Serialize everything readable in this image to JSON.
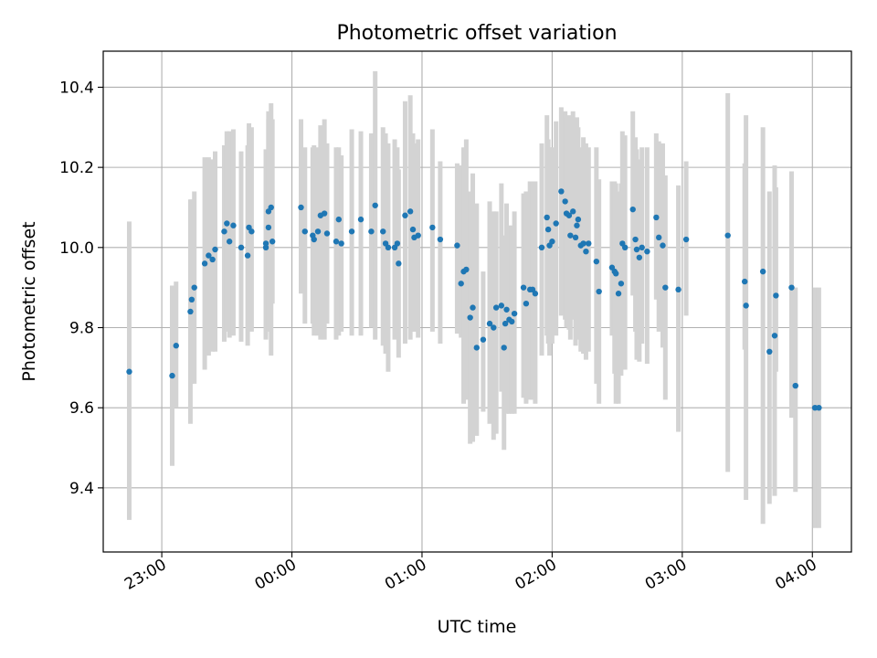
{
  "chart_data": {
    "type": "scatter",
    "title": "Photometric offset variation",
    "xlabel": "UTC time",
    "ylabel": "Photometric offset",
    "x_unit": "UTC time (hours after 22:00; ticks show HH:MM)",
    "xlim": [
      0.55,
      6.3
    ],
    "ylim": [
      9.24,
      10.49
    ],
    "x_ticks": [
      1.0,
      2.0,
      3.0,
      4.0,
      5.0,
      6.0
    ],
    "x_tick_labels": [
      "23:00",
      "00:00",
      "01:00",
      "02:00",
      "03:00",
      "04:00"
    ],
    "y_ticks": [
      9.4,
      9.6,
      9.8,
      10.0,
      10.2,
      10.4
    ],
    "y_tick_labels": [
      "9.4",
      "9.6",
      "9.8",
      "10.0",
      "10.2",
      "10.4"
    ],
    "grid": true,
    "legend": "none",
    "colors": {
      "points": "#1f77b4",
      "errorbars": "#d3d3d3",
      "grid": "#b0b0b0"
    },
    "series": [
      {
        "x": [
          0.75,
          1.08,
          1.11,
          1.22,
          1.23,
          1.25,
          1.33,
          1.36,
          1.39,
          1.41,
          1.48,
          1.5,
          1.52,
          1.55,
          1.61,
          1.66,
          1.67,
          1.69,
          1.8,
          1.8,
          1.82,
          1.82,
          1.84,
          1.85,
          2.07,
          2.1,
          2.16,
          2.17,
          2.2,
          2.22,
          2.25,
          2.27,
          2.34,
          2.36,
          2.38,
          2.46,
          2.53,
          2.61,
          2.64,
          2.7,
          2.72,
          2.74,
          2.79,
          2.81,
          2.82,
          2.87,
          2.91,
          2.93,
          2.94,
          2.97,
          3.08,
          3.14,
          3.27,
          3.3,
          3.32,
          3.34,
          3.37,
          3.39,
          3.42,
          3.47,
          3.52,
          3.55,
          3.57,
          3.61,
          3.63,
          3.64,
          3.65,
          3.67,
          3.69,
          3.71,
          3.78,
          3.8,
          3.83,
          3.85,
          3.87,
          3.92,
          3.96,
          3.97,
          3.98,
          4.0,
          4.03,
          4.07,
          4.1,
          4.11,
          4.13,
          4.14,
          4.16,
          4.18,
          4.19,
          4.2,
          4.22,
          4.24,
          4.26,
          4.28,
          4.34,
          4.36,
          4.46,
          4.48,
          4.49,
          4.51,
          4.53,
          4.54,
          4.56,
          4.62,
          4.64,
          4.65,
          4.67,
          4.69,
          4.73,
          4.8,
          4.82,
          4.85,
          4.87,
          4.97,
          5.03,
          5.35,
          5.48,
          5.49,
          5.62,
          5.67,
          5.71,
          5.72,
          5.84,
          5.87,
          6.02,
          6.05
        ],
        "y": [
          9.69,
          9.68,
          9.755,
          9.84,
          9.87,
          9.9,
          9.96,
          9.98,
          9.97,
          9.995,
          10.04,
          10.06,
          10.015,
          10.055,
          10.0,
          9.98,
          10.05,
          10.04,
          10.0,
          10.01,
          10.05,
          10.09,
          10.1,
          10.015,
          10.1,
          10.04,
          10.03,
          10.02,
          10.04,
          10.08,
          10.085,
          10.035,
          10.015,
          10.07,
          10.01,
          10.04,
          10.07,
          10.04,
          10.105,
          10.04,
          10.01,
          10.0,
          10.0,
          10.01,
          9.96,
          10.08,
          10.09,
          10.045,
          10.025,
          10.03,
          10.05,
          10.02,
          10.005,
          9.91,
          9.94,
          9.945,
          9.825,
          9.85,
          9.75,
          9.77,
          9.81,
          9.8,
          9.85,
          9.855,
          9.75,
          9.81,
          9.845,
          9.82,
          9.815,
          9.835,
          9.9,
          9.86,
          9.895,
          9.895,
          9.885,
          10.0,
          10.075,
          10.045,
          10.005,
          10.015,
          10.06,
          10.14,
          10.115,
          10.085,
          10.08,
          10.03,
          10.09,
          10.025,
          10.055,
          10.07,
          10.005,
          10.01,
          9.99,
          10.01,
          9.965,
          9.89,
          9.95,
          9.94,
          9.935,
          9.885,
          9.91,
          10.01,
          10.0,
          10.095,
          10.02,
          9.995,
          9.975,
          10.0,
          9.99,
          10.075,
          10.025,
          10.005,
          9.9,
          9.895,
          10.02,
          10.03,
          9.915,
          9.855,
          9.94,
          9.74,
          9.78,
          9.88,
          9.9,
          9.655,
          9.6,
          9.6
        ],
        "yerr_low": [
          9.32,
          9.455,
          9.6,
          9.56,
          9.66,
          9.66,
          9.695,
          9.73,
          9.74,
          9.74,
          9.765,
          9.79,
          9.775,
          9.78,
          9.765,
          9.755,
          9.8,
          9.79,
          9.77,
          9.78,
          9.79,
          9.84,
          9.73,
          9.86,
          9.885,
          9.81,
          9.81,
          9.78,
          9.78,
          9.77,
          9.77,
          9.81,
          9.77,
          9.78,
          9.79,
          9.78,
          9.78,
          9.8,
          9.77,
          9.755,
          9.735,
          9.69,
          9.77,
          9.79,
          9.725,
          9.76,
          9.77,
          9.79,
          9.79,
          9.775,
          9.79,
          9.76,
          9.785,
          9.775,
          9.61,
          9.62,
          9.51,
          9.515,
          9.53,
          9.59,
          9.56,
          9.52,
          9.535,
          9.64,
          9.495,
          9.6,
          9.585,
          9.585,
          9.585,
          9.585,
          9.625,
          9.61,
          9.62,
          9.62,
          9.61,
          9.73,
          9.78,
          9.76,
          9.73,
          9.76,
          9.78,
          9.83,
          9.82,
          9.8,
          9.795,
          9.77,
          9.82,
          9.755,
          9.77,
          9.775,
          9.74,
          9.735,
          9.72,
          9.74,
          9.66,
          9.61,
          9.78,
          9.685,
          9.61,
          9.61,
          9.68,
          9.79,
          9.695,
          9.88,
          9.79,
          9.72,
          9.715,
          9.76,
          9.71,
          9.87,
          9.79,
          9.75,
          9.62,
          9.54,
          9.83,
          9.44,
          9.745,
          9.37,
          9.31,
          9.36,
          9.38,
          9.69,
          9.575,
          9.39,
          9.3,
          9.3
        ],
        "yerr_high": [
          10.065,
          9.905,
          9.915,
          10.12,
          10.12,
          10.14,
          10.225,
          10.225,
          10.22,
          10.24,
          10.255,
          10.29,
          10.29,
          10.295,
          10.24,
          10.255,
          10.31,
          10.3,
          10.24,
          10.245,
          10.32,
          10.34,
          10.36,
          10.32,
          10.32,
          10.25,
          10.25,
          10.255,
          10.25,
          10.305,
          10.32,
          10.26,
          10.25,
          10.25,
          10.23,
          10.295,
          10.29,
          10.285,
          10.44,
          10.3,
          10.285,
          10.26,
          10.27,
          10.25,
          10.195,
          10.365,
          10.38,
          10.285,
          10.26,
          10.27,
          10.295,
          10.215,
          10.21,
          10.205,
          10.25,
          10.27,
          10.14,
          10.185,
          10.11,
          9.94,
          10.115,
          10.09,
          10.09,
          10.16,
          9.99,
          10.03,
          10.11,
          10.055,
          10.055,
          10.09,
          10.135,
          10.14,
          10.165,
          10.165,
          10.165,
          10.26,
          10.33,
          10.27,
          10.25,
          10.25,
          10.315,
          10.35,
          10.34,
          10.325,
          10.33,
          10.275,
          10.34,
          10.27,
          10.325,
          10.3,
          10.25,
          10.275,
          10.26,
          10.25,
          10.25,
          10.17,
          10.165,
          10.165,
          10.16,
          10.14,
          10.16,
          10.29,
          10.28,
          10.34,
          10.275,
          10.245,
          10.22,
          10.25,
          10.25,
          10.285,
          10.265,
          10.26,
          10.18,
          10.155,
          10.215,
          10.385,
          10.21,
          10.33,
          10.3,
          10.14,
          10.205,
          10.15,
          10.19,
          9.9,
          9.9,
          9.9
        ]
      }
    ]
  }
}
